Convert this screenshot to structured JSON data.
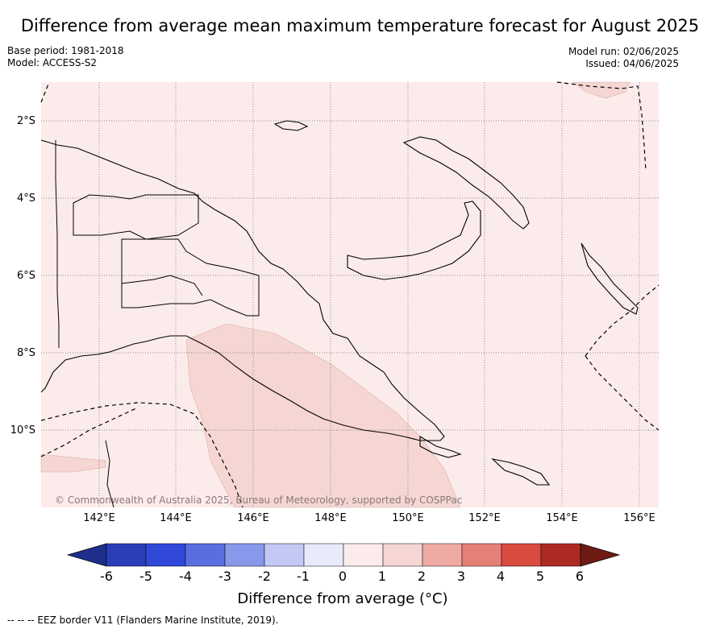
{
  "title": "Difference from average mean maximum temperature forecast for August 2025",
  "meta": {
    "base_period": "Base period: 1981-2018",
    "model": "Model: ACCESS-S2",
    "model_run": "Model run: 02/06/2025",
    "issued": "Issued: 04/06/2025"
  },
  "map": {
    "copyright": "© Commonwealth of Australia 2025, Bureau of Meteorology, supported by COSPPac",
    "lat_labels": [
      "2°S",
      "4°S",
      "6°S",
      "8°S",
      "10°S"
    ],
    "lon_labels": [
      "142°E",
      "144°E",
      "146°E",
      "148°E",
      "150°E",
      "152°E",
      "154°E",
      "156°E"
    ],
    "background_color": "#fbeceb",
    "anomaly_color": "#f5d6d2"
  },
  "colorbar": {
    "ticks": [
      "-6",
      "-5",
      "-4",
      "-3",
      "-2",
      "-1",
      "0",
      "1",
      "2",
      "3",
      "4",
      "5",
      "6"
    ],
    "colors": [
      "#1f2e8a",
      "#2a3eb8",
      "#3049d8",
      "#5a6ee0",
      "#8898ea",
      "#c3c8f4",
      "#e8eaf9",
      "#fbeceb",
      "#f5d6d2",
      "#efaba3",
      "#e67f77",
      "#d94a3f",
      "#ad2a22",
      "#6e1a15"
    ],
    "label": "Difference from average (°C)"
  },
  "footnote": "--  --  -- EEZ border V11 (Flanders Marine Institute, 2019)."
}
